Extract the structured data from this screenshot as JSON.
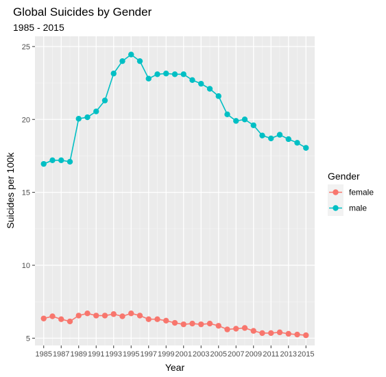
{
  "chart_data": {
    "type": "line",
    "title": "Global Suicides by Gender",
    "subtitle": "1985 - 2015",
    "xlabel": "Year",
    "ylabel": "Suicides per 100k",
    "x": [
      1985,
      1986,
      1987,
      1988,
      1989,
      1990,
      1991,
      1992,
      1993,
      1994,
      1995,
      1996,
      1997,
      1998,
      1999,
      2000,
      2001,
      2002,
      2003,
      2004,
      2005,
      2006,
      2007,
      2008,
      2009,
      2010,
      2011,
      2012,
      2013,
      2014,
      2015
    ],
    "x_tick_labels": [
      "1985",
      "1987",
      "1989",
      "1991",
      "1993",
      "1995",
      "1997",
      "1999",
      "2001",
      "2003",
      "2005",
      "2007",
      "2009",
      "2011",
      "2013",
      "2015"
    ],
    "x_tick_values": [
      1985,
      1987,
      1989,
      1991,
      1993,
      1995,
      1997,
      1999,
      2001,
      2003,
      2005,
      2007,
      2009,
      2011,
      2013,
      2015
    ],
    "y_tick_labels": [
      "5",
      "10",
      "15",
      "20",
      "25"
    ],
    "y_tick_values": [
      5,
      10,
      15,
      20,
      25
    ],
    "xlim": [
      1984.0,
      2016.0
    ],
    "ylim": [
      4.5,
      25.7
    ],
    "grid": true,
    "legend": {
      "title": "Gender",
      "position": "right"
    },
    "series": [
      {
        "name": "female",
        "color": "#F8766D",
        "values": [
          6.35,
          6.5,
          6.3,
          6.15,
          6.55,
          6.7,
          6.55,
          6.55,
          6.65,
          6.5,
          6.7,
          6.55,
          6.3,
          6.3,
          6.2,
          6.05,
          5.95,
          6.0,
          5.95,
          6.0,
          5.85,
          5.6,
          5.65,
          5.7,
          5.5,
          5.35,
          5.35,
          5.4,
          5.3,
          5.25,
          5.2
        ]
      },
      {
        "name": "male",
        "color": "#00BFC4",
        "values": [
          16.95,
          17.2,
          17.2,
          17.1,
          20.05,
          20.15,
          20.55,
          21.3,
          23.15,
          24.0,
          24.45,
          24.0,
          22.8,
          23.1,
          23.15,
          23.1,
          23.1,
          22.7,
          22.45,
          22.1,
          21.6,
          20.35,
          19.9,
          20.0,
          19.6,
          18.9,
          18.7,
          18.95,
          18.65,
          18.4,
          18.05
        ]
      }
    ]
  }
}
